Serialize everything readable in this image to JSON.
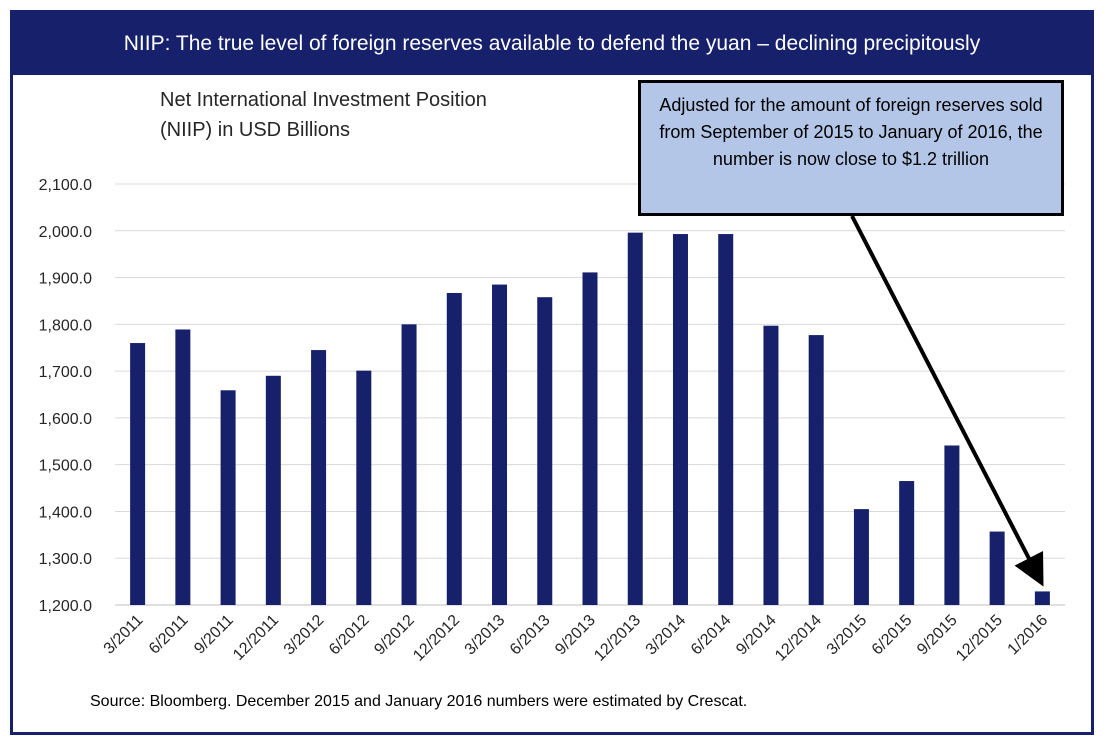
{
  "banner": {
    "title": "NIIP: The true level of foreign reserves available to defend the yuan – declining precipitously"
  },
  "callout": {
    "text": "Adjusted for the amount of foreign reserves sold from September of 2015 to January of 2016, the number is now close to $1.2 trillion"
  },
  "source": {
    "text": "Source: Bloomberg. December 2015 and January 2016 numbers were estimated by Crescat."
  },
  "chart_data": {
    "type": "bar",
    "title": "Net International Investment Position (NIIP) in USD Billions",
    "categories": [
      "3/2011",
      "6/2011",
      "9/2011",
      "12/2011",
      "3/2012",
      "6/2012",
      "9/2012",
      "12/2012",
      "3/2013",
      "6/2013",
      "9/2013",
      "12/2013",
      "3/2014",
      "6/2014",
      "9/2014",
      "12/2014",
      "3/2015",
      "6/2015",
      "9/2015",
      "12/2015",
      "1/2016"
    ],
    "values": [
      1760,
      1789,
      1659,
      1690,
      1745,
      1701,
      1800,
      1867,
      1885,
      1858,
      1911,
      1996,
      1993,
      1993,
      1797,
      1777,
      1405,
      1465,
      1541,
      1357,
      1229
    ],
    "ylim": [
      1200,
      2100
    ],
    "yticks": [
      "1,200.0",
      "1,300.0",
      "1,400.0",
      "1,500.0",
      "1,600.0",
      "1,700.0",
      "1,800.0",
      "1,900.0",
      "2,000.0",
      "2,100.0"
    ],
    "grid": true,
    "bar_color": "#16206b",
    "xlabel": "",
    "ylabel": ""
  }
}
